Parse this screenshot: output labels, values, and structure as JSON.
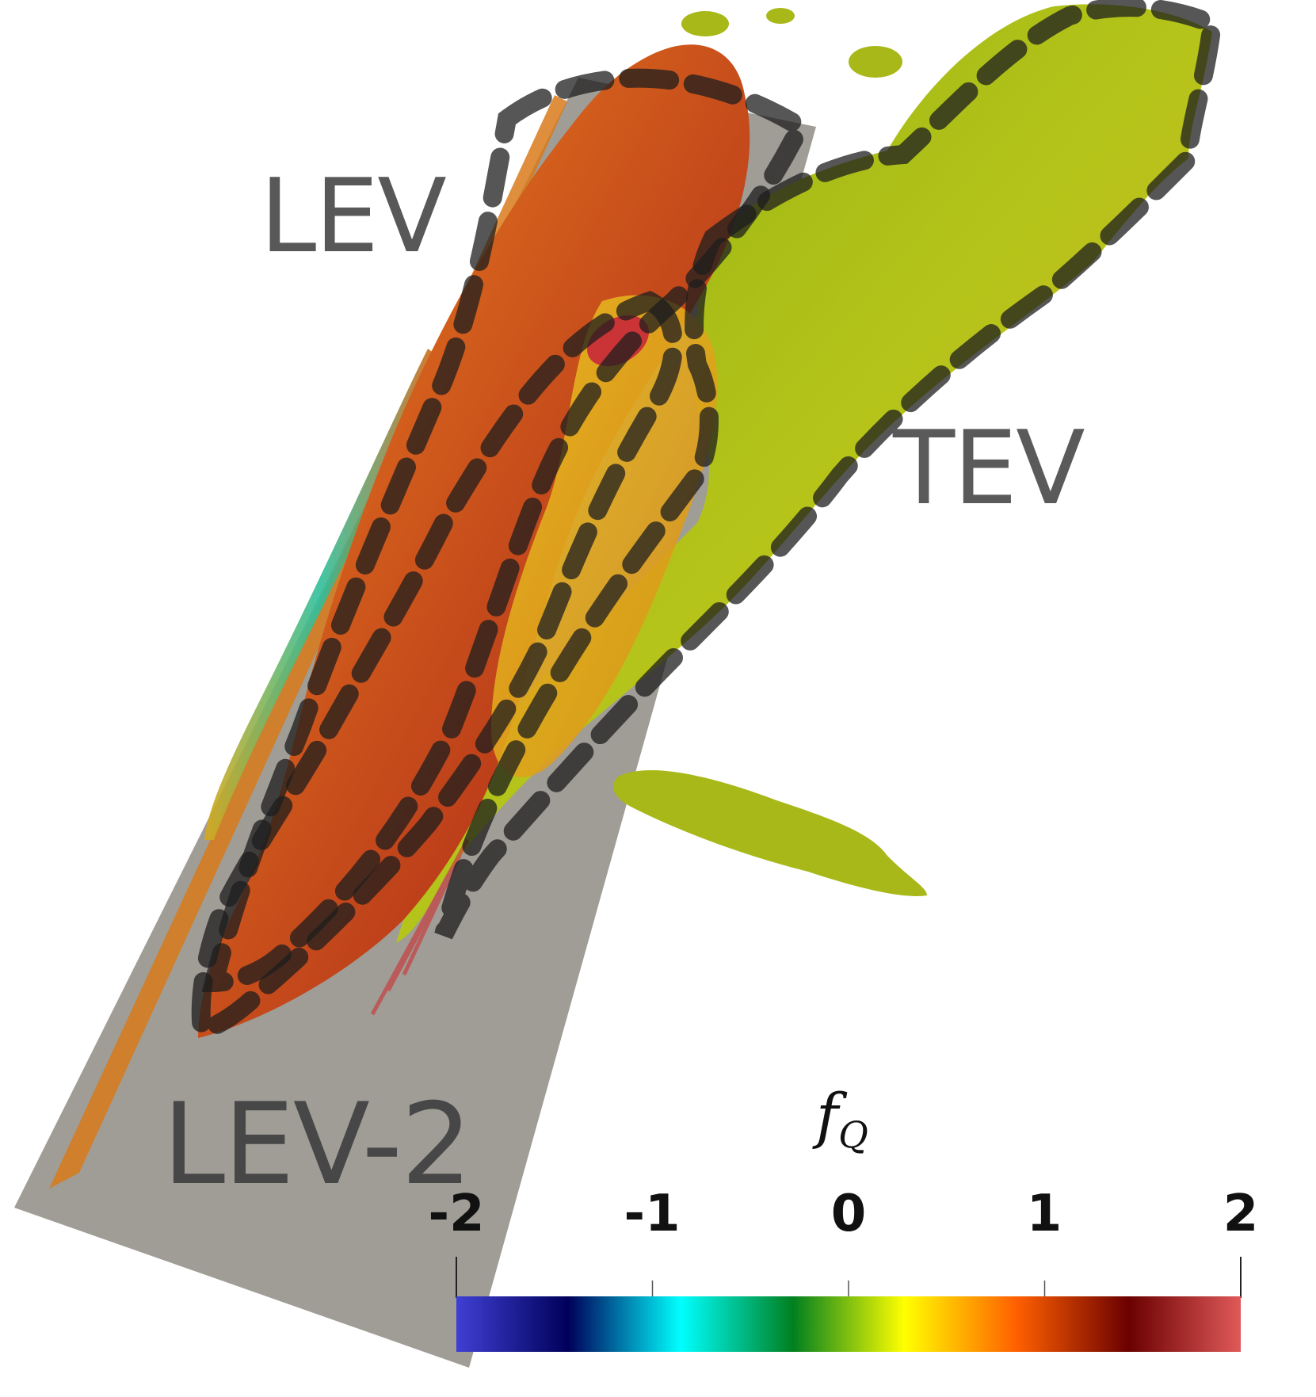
{
  "annotations": {
    "lev": "LEV",
    "tev": "TEV",
    "lev2": "LEV-2"
  },
  "colorbar": {
    "variable": "f",
    "subscript": "Q",
    "min": -2,
    "max": 2,
    "ticks": [
      "-2",
      "-1",
      "0",
      "1",
      "2"
    ],
    "colormap": [
      "#3f3fd4",
      "#00005a",
      "#00ffff",
      "#00801f",
      "#ffff00",
      "#ff6000",
      "#6b0000",
      "#e05959"
    ]
  },
  "scene": {
    "plate_color": "#9a9890",
    "outline_color": "#2a2a2a",
    "surface_colors": {
      "lev": "#c84a1e",
      "lev2": "#8a1a14",
      "tev": "#9fbf12",
      "core": "#e0a020"
    }
  }
}
